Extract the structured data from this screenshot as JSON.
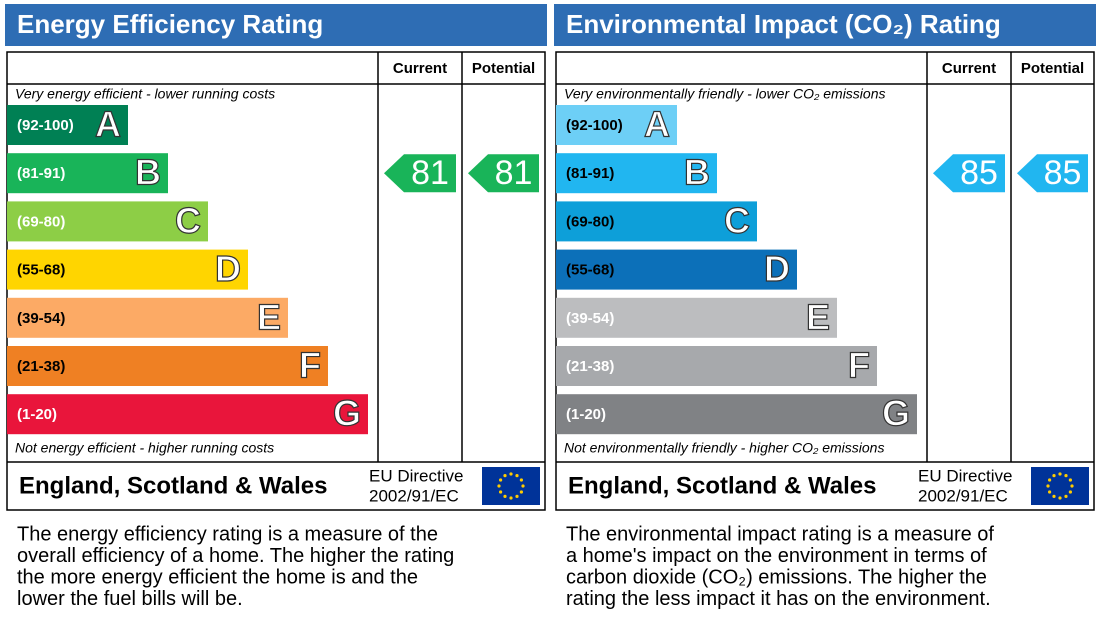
{
  "panels": [
    {
      "title": "Energy Efficiency Rating",
      "current_header": "Current",
      "potential_header": "Potential",
      "top_note": "Very energy efficient - lower running costs",
      "bottom_note": "Not energy efficient - higher running costs",
      "bands": [
        {
          "range": "(92-100)",
          "letter": "A",
          "color": "#008054"
        },
        {
          "range": "(81-91)",
          "letter": "B",
          "color": "#19b459"
        },
        {
          "range": "(69-80)",
          "letter": "C",
          "color": "#8dce46"
        },
        {
          "range": "(55-68)",
          "letter": "D",
          "color": "#ffd500"
        },
        {
          "range": "(39-54)",
          "letter": "E",
          "color": "#fcaa65"
        },
        {
          "range": "(21-38)",
          "letter": "F",
          "color": "#ef8023"
        },
        {
          "range": "(1-20)",
          "letter": "G",
          "color": "#e9153b"
        }
      ],
      "current": 81,
      "potential": 81,
      "region": "England, Scotland & Wales",
      "directive": "EU Directive",
      "directive_number": "2002/91/EC",
      "description": [
        "The energy efficiency rating is a measure of the",
        "overall efficiency of a home. The higher the rating",
        "the more energy efficient the home is and the",
        "lower the fuel bills will be."
      ]
    },
    {
      "title": "Environmental Impact (CO₂) Rating",
      "current_header": "Current",
      "potential_header": "Potential",
      "top_note": "Very environmentally friendly - lower CO₂ emissions",
      "bottom_note": "Not environmentally friendly - higher CO₂ emissions",
      "bands": [
        {
          "range": "(92-100)",
          "letter": "A",
          "color": "#6dcff6"
        },
        {
          "range": "(81-91)",
          "letter": "B",
          "color": "#21b6f0"
        },
        {
          "range": "(69-80)",
          "letter": "C",
          "color": "#0d9fd9"
        },
        {
          "range": "(55-68)",
          "letter": "D",
          "color": "#0c70b9"
        },
        {
          "range": "(39-54)",
          "letter": "E",
          "color": "#bcbdbf"
        },
        {
          "range": "(21-38)",
          "letter": "F",
          "color": "#a7a9ac"
        },
        {
          "range": "(1-20)",
          "letter": "G",
          "color": "#808285"
        }
      ],
      "current": 85,
      "potential": 85,
      "region": "England, Scotland & Wales",
      "directive": "EU Directive",
      "directive_number": "2002/91/EC",
      "description": [
        "The environmental impact rating is a measure of",
        "a home's impact on the environment in terms of",
        "carbon dioxide (CO₂) emissions. The higher the",
        "rating the less impact it has on the environment."
      ]
    }
  ]
}
